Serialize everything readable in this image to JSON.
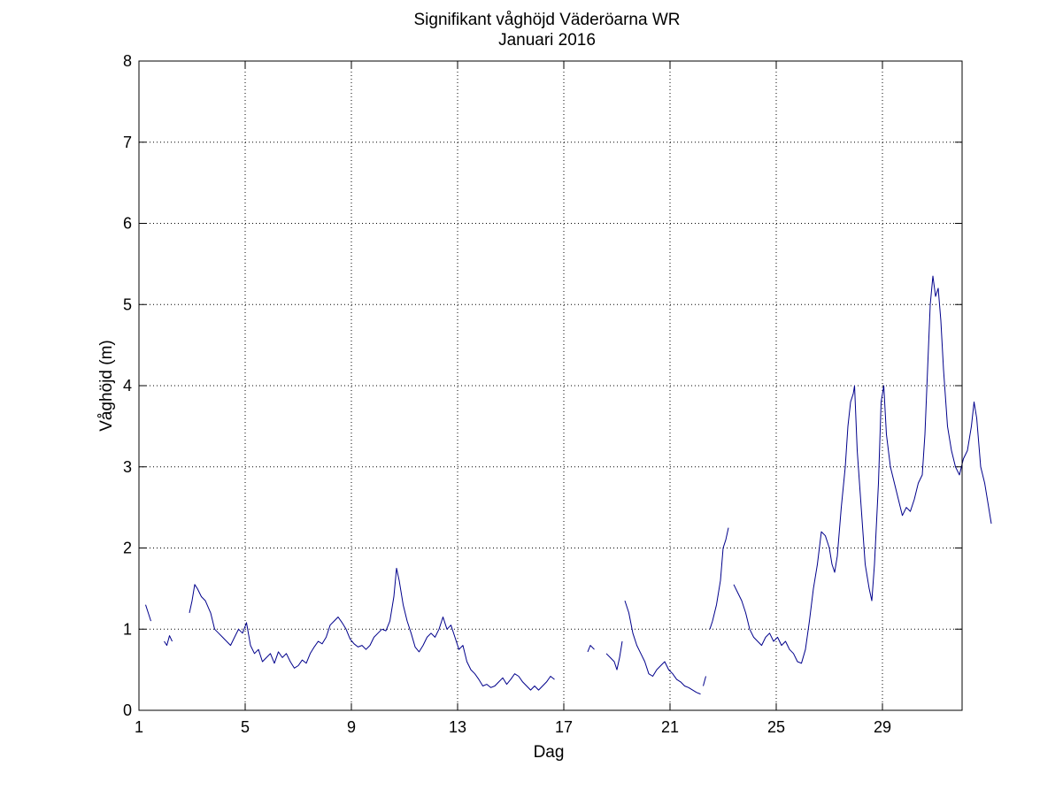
{
  "chart_data": {
    "type": "line",
    "title": "Signifikant våghöjd Väderöarna WR",
    "subtitle": "Januari 2016",
    "xlabel": "Dag",
    "ylabel": "Våghöjd (m)",
    "xlim": [
      1,
      32
    ],
    "ylim": [
      0,
      8
    ],
    "xticks": [
      1,
      5,
      9,
      13,
      17,
      21,
      25,
      29
    ],
    "yticks": [
      0,
      1,
      2,
      3,
      4,
      5,
      6,
      7,
      8
    ],
    "grid": true,
    "line_color": "#00008b",
    "series": [
      {
        "segments": [
          [
            [
              1.25,
              1.3
            ],
            [
              1.35,
              1.2
            ],
            [
              1.45,
              1.1
            ]
          ],
          [
            [
              1.95,
              0.85
            ],
            [
              2.05,
              0.8
            ],
            [
              2.15,
              0.92
            ],
            [
              2.25,
              0.85
            ]
          ],
          [
            [
              2.9,
              1.2
            ],
            [
              3.0,
              1.35
            ],
            [
              3.1,
              1.55
            ],
            [
              3.2,
              1.5
            ],
            [
              3.35,
              1.4
            ],
            [
              3.5,
              1.35
            ],
            [
              3.7,
              1.2
            ],
            [
              3.85,
              1.0
            ],
            [
              4.0,
              0.95
            ],
            [
              4.15,
              0.9
            ],
            [
              4.3,
              0.85
            ],
            [
              4.45,
              0.8
            ],
            [
              4.6,
              0.9
            ],
            [
              4.75,
              1.0
            ],
            [
              4.9,
              0.95
            ],
            [
              5.05,
              1.08
            ],
            [
              5.2,
              0.8
            ],
            [
              5.35,
              0.7
            ],
            [
              5.5,
              0.75
            ],
            [
              5.65,
              0.6
            ],
            [
              5.8,
              0.65
            ],
            [
              5.95,
              0.7
            ],
            [
              6.1,
              0.58
            ],
            [
              6.25,
              0.72
            ],
            [
              6.4,
              0.65
            ],
            [
              6.55,
              0.7
            ],
            [
              6.7,
              0.6
            ],
            [
              6.85,
              0.52
            ],
            [
              7.0,
              0.55
            ],
            [
              7.15,
              0.62
            ],
            [
              7.3,
              0.58
            ],
            [
              7.45,
              0.7
            ],
            [
              7.6,
              0.78
            ],
            [
              7.75,
              0.85
            ],
            [
              7.9,
              0.82
            ],
            [
              8.05,
              0.9
            ],
            [
              8.2,
              1.05
            ],
            [
              8.35,
              1.1
            ],
            [
              8.5,
              1.15
            ],
            [
              8.65,
              1.08
            ],
            [
              8.8,
              1.0
            ],
            [
              8.95,
              0.88
            ],
            [
              9.1,
              0.82
            ],
            [
              9.25,
              0.78
            ],
            [
              9.4,
              0.8
            ],
            [
              9.55,
              0.75
            ],
            [
              9.7,
              0.8
            ],
            [
              9.85,
              0.9
            ],
            [
              10.0,
              0.95
            ],
            [
              10.15,
              1.0
            ],
            [
              10.3,
              0.98
            ],
            [
              10.45,
              1.1
            ],
            [
              10.6,
              1.4
            ],
            [
              10.7,
              1.75
            ],
            [
              10.8,
              1.6
            ],
            [
              10.95,
              1.3
            ],
            [
              11.1,
              1.1
            ],
            [
              11.25,
              0.95
            ],
            [
              11.4,
              0.78
            ],
            [
              11.55,
              0.72
            ],
            [
              11.7,
              0.8
            ],
            [
              11.85,
              0.9
            ],
            [
              12.0,
              0.95
            ],
            [
              12.15,
              0.9
            ],
            [
              12.3,
              1.0
            ],
            [
              12.45,
              1.15
            ],
            [
              12.6,
              1.0
            ],
            [
              12.75,
              1.05
            ],
            [
              12.9,
              0.9
            ],
            [
              13.05,
              0.75
            ],
            [
              13.2,
              0.8
            ],
            [
              13.35,
              0.6
            ],
            [
              13.5,
              0.5
            ],
            [
              13.65,
              0.45
            ],
            [
              13.8,
              0.38
            ],
            [
              13.95,
              0.3
            ],
            [
              14.1,
              0.32
            ],
            [
              14.25,
              0.28
            ],
            [
              14.4,
              0.3
            ],
            [
              14.55,
              0.35
            ],
            [
              14.7,
              0.4
            ],
            [
              14.85,
              0.32
            ],
            [
              15.0,
              0.38
            ],
            [
              15.15,
              0.45
            ],
            [
              15.3,
              0.42
            ],
            [
              15.45,
              0.35
            ],
            [
              15.6,
              0.3
            ],
            [
              15.75,
              0.25
            ],
            [
              15.9,
              0.3
            ],
            [
              16.05,
              0.25
            ],
            [
              16.2,
              0.3
            ],
            [
              16.35,
              0.35
            ],
            [
              16.5,
              0.42
            ],
            [
              16.65,
              0.38
            ]
          ],
          [
            [
              17.9,
              0.72
            ],
            [
              18.0,
              0.8
            ],
            [
              18.15,
              0.75
            ]
          ],
          [
            [
              18.6,
              0.7
            ],
            [
              18.75,
              0.65
            ],
            [
              18.9,
              0.6
            ],
            [
              19.0,
              0.5
            ],
            [
              19.1,
              0.65
            ],
            [
              19.2,
              0.85
            ]
          ],
          [
            [
              19.3,
              1.35
            ],
            [
              19.45,
              1.2
            ],
            [
              19.6,
              0.95
            ],
            [
              19.75,
              0.8
            ],
            [
              19.9,
              0.7
            ],
            [
              20.05,
              0.6
            ],
            [
              20.2,
              0.45
            ],
            [
              20.35,
              0.42
            ],
            [
              20.5,
              0.5
            ],
            [
              20.65,
              0.55
            ],
            [
              20.8,
              0.6
            ],
            [
              20.95,
              0.5
            ],
            [
              21.1,
              0.45
            ],
            [
              21.25,
              0.38
            ],
            [
              21.4,
              0.35
            ],
            [
              21.55,
              0.3
            ],
            [
              21.7,
              0.28
            ],
            [
              21.85,
              0.25
            ],
            [
              22.0,
              0.22
            ],
            [
              22.15,
              0.2
            ]
          ],
          [
            [
              22.25,
              0.3
            ],
            [
              22.35,
              0.42
            ]
          ],
          [
            [
              22.5,
              1.0
            ],
            [
              22.6,
              1.1
            ],
            [
              22.75,
              1.3
            ],
            [
              22.9,
              1.6
            ],
            [
              23.0,
              2.0
            ],
            [
              23.1,
              2.1
            ],
            [
              23.2,
              2.25
            ]
          ],
          [
            [
              23.4,
              1.55
            ],
            [
              23.55,
              1.45
            ],
            [
              23.7,
              1.35
            ],
            [
              23.85,
              1.2
            ],
            [
              24.0,
              1.0
            ],
            [
              24.15,
              0.9
            ],
            [
              24.3,
              0.85
            ],
            [
              24.45,
              0.8
            ],
            [
              24.6,
              0.9
            ],
            [
              24.75,
              0.95
            ],
            [
              24.9,
              0.85
            ],
            [
              25.05,
              0.9
            ],
            [
              25.2,
              0.8
            ],
            [
              25.35,
              0.85
            ],
            [
              25.5,
              0.75
            ],
            [
              25.65,
              0.7
            ],
            [
              25.8,
              0.6
            ],
            [
              25.95,
              0.58
            ],
            [
              26.1,
              0.75
            ],
            [
              26.25,
              1.1
            ],
            [
              26.4,
              1.5
            ],
            [
              26.55,
              1.8
            ],
            [
              26.7,
              2.2
            ],
            [
              26.85,
              2.15
            ],
            [
              27.0,
              2.0
            ],
            [
              27.1,
              1.8
            ],
            [
              27.2,
              1.7
            ],
            [
              27.3,
              1.9
            ],
            [
              27.45,
              2.5
            ],
            [
              27.6,
              3.0
            ],
            [
              27.7,
              3.5
            ],
            [
              27.8,
              3.8
            ],
            [
              27.9,
              3.9
            ],
            [
              27.95,
              4.0
            ],
            [
              28.05,
              3.2
            ],
            [
              28.2,
              2.5
            ],
            [
              28.35,
              1.8
            ],
            [
              28.5,
              1.5
            ],
            [
              28.6,
              1.35
            ],
            [
              28.7,
              1.8
            ],
            [
              28.85,
              2.8
            ],
            [
              28.95,
              3.8
            ],
            [
              29.05,
              4.0
            ],
            [
              29.15,
              3.4
            ],
            [
              29.3,
              3.0
            ],
            [
              29.45,
              2.8
            ],
            [
              29.6,
              2.6
            ],
            [
              29.75,
              2.4
            ],
            [
              29.9,
              2.5
            ],
            [
              30.05,
              2.45
            ],
            [
              30.2,
              2.6
            ],
            [
              30.35,
              2.8
            ],
            [
              30.5,
              2.9
            ],
            [
              30.6,
              3.4
            ],
            [
              30.7,
              4.2
            ],
            [
              30.8,
              5.0
            ],
            [
              30.9,
              5.35
            ],
            [
              31.0,
              5.1
            ],
            [
              31.1,
              5.2
            ],
            [
              31.2,
              4.8
            ],
            [
              31.3,
              4.2
            ],
            [
              31.45,
              3.5
            ],
            [
              31.6,
              3.2
            ],
            [
              31.75,
              3.0
            ],
            [
              31.9,
              2.9
            ],
            [
              32.05,
              3.1
            ],
            [
              32.2,
              3.2
            ],
            [
              32.35,
              3.5
            ],
            [
              32.45,
              3.8
            ],
            [
              32.55,
              3.6
            ],
            [
              32.7,
              3.0
            ],
            [
              32.85,
              2.8
            ],
            [
              33.0,
              2.5
            ],
            [
              33.1,
              2.3
            ]
          ]
        ]
      }
    ]
  }
}
